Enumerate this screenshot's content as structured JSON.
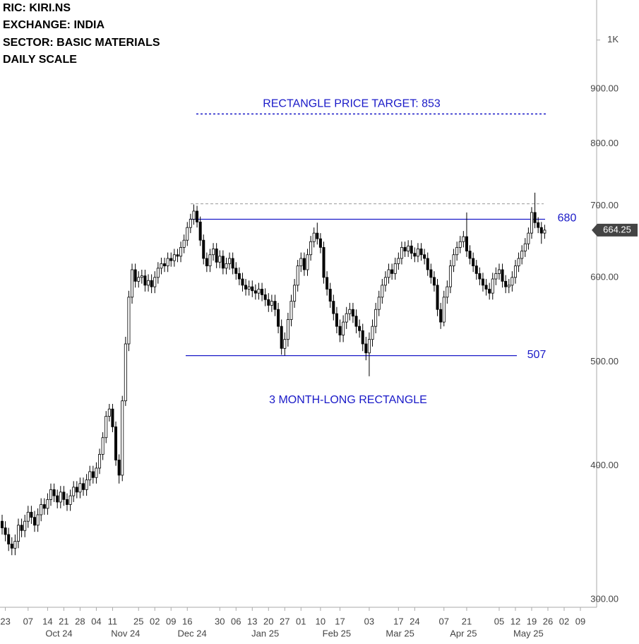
{
  "chart_data": {
    "type": "candlestick",
    "header_lines": [
      "RIC:  KIRI.NS",
      "EXCHANGE:  INDIA",
      "SECTOR:  BASIC MATERIALS",
      "DAILY SCALE"
    ],
    "log_scale": true,
    "ylim": [
      295,
      1090
    ],
    "yticks": [
      {
        "value": 300,
        "label": "300.00"
      },
      {
        "value": 400,
        "label": "400.00"
      },
      {
        "value": 500,
        "label": "500.00"
      },
      {
        "value": 600,
        "label": "600.00"
      },
      {
        "value": 700,
        "label": "700.00"
      },
      {
        "value": 800,
        "label": "800.00"
      },
      {
        "value": 900,
        "label": "900.00"
      },
      {
        "value": 1000,
        "label": "1K"
      }
    ],
    "xlim": [
      -0.65,
      183
    ],
    "xticks": [
      {
        "value": 1,
        "label": "23"
      },
      {
        "value": 8,
        "label": "07"
      },
      {
        "value": 14,
        "label": "14"
      },
      {
        "value": 19,
        "label": "21"
      },
      {
        "value": 24,
        "label": "28"
      },
      {
        "value": 29,
        "label": "04"
      },
      {
        "value": 34,
        "label": "11"
      },
      {
        "value": 42,
        "label": "25"
      },
      {
        "value": 47,
        "label": "02"
      },
      {
        "value": 52,
        "label": "09"
      },
      {
        "value": 57,
        "label": "16"
      },
      {
        "value": 67,
        "label": "30"
      },
      {
        "value": 72,
        "label": "06"
      },
      {
        "value": 77,
        "label": "13"
      },
      {
        "value": 82,
        "label": "20"
      },
      {
        "value": 87,
        "label": "27"
      },
      {
        "value": 92,
        "label": "01"
      },
      {
        "value": 98,
        "label": "10"
      },
      {
        "value": 104,
        "label": "17"
      },
      {
        "value": 113,
        "label": "03"
      },
      {
        "value": 122,
        "label": "17"
      },
      {
        "value": 127,
        "label": "24"
      },
      {
        "value": 136,
        "label": "07"
      },
      {
        "value": 143,
        "label": "21"
      },
      {
        "value": 153,
        "label": "05"
      },
      {
        "value": 158,
        "label": "12"
      },
      {
        "value": 163,
        "label": "19"
      },
      {
        "value": 168,
        "label": "26"
      },
      {
        "value": 173,
        "label": "02"
      },
      {
        "value": 178,
        "label": "09"
      }
    ],
    "month_labels": [
      {
        "value": 17.5,
        "label": "Oct 24"
      },
      {
        "value": 38,
        "label": "Nov 24"
      },
      {
        "value": 58.5,
        "label": "Dec 24"
      },
      {
        "value": 81,
        "label": "Jan 25"
      },
      {
        "value": 103,
        "label": "Feb 25"
      },
      {
        "value": 122.5,
        "label": "Mar 25"
      },
      {
        "value": 142,
        "label": "Apr 25"
      },
      {
        "value": 162,
        "label": "May 25"
      }
    ],
    "up_color": "#ffffff",
    "down_color": "#000000",
    "open": [
      355,
      350,
      345,
      338,
      335,
      340,
      352,
      348,
      355,
      362,
      358,
      352,
      360,
      368,
      365,
      372,
      380,
      375,
      370,
      378,
      372,
      368,
      375,
      382,
      378,
      385,
      380,
      388,
      395,
      390,
      398,
      410,
      425,
      445,
      452,
      435,
      405,
      392,
      460,
      520,
      575,
      610,
      595,
      600,
      602,
      590,
      596,
      588,
      600,
      612,
      618,
      615,
      625,
      622,
      630,
      628,
      640,
      650,
      668,
      680,
      692,
      676,
      650,
      625,
      615,
      630,
      638,
      620,
      628,
      612,
      618,
      625,
      612,
      605,
      598,
      590,
      585,
      588,
      583,
      580,
      585,
      578,
      572,
      565,
      570,
      560,
      540,
      515,
      525,
      548,
      570,
      590,
      615,
      625,
      610,
      630,
      648,
      660,
      652,
      640,
      600,
      585,
      570,
      555,
      540,
      530,
      545,
      555,
      560,
      552,
      540,
      535,
      520,
      510,
      525,
      540,
      560,
      575,
      590,
      600,
      610,
      605,
      618,
      625,
      640,
      635,
      642,
      632,
      628,
      638,
      630,
      625,
      610,
      600,
      590,
      560,
      545,
      575,
      588,
      615,
      630,
      640,
      648,
      655,
      635,
      625,
      615,
      605,
      598,
      590,
      585,
      580,
      598,
      605,
      610,
      595,
      588,
      590,
      600,
      615,
      625,
      635,
      645,
      660,
      690,
      675,
      668,
      660
    ],
    "high": [
      360,
      355,
      350,
      343,
      345,
      357,
      357,
      360,
      367,
      367,
      363,
      365,
      373,
      373,
      377,
      385,
      385,
      380,
      383,
      383,
      377,
      380,
      387,
      387,
      390,
      390,
      393,
      400,
      400,
      403,
      415,
      430,
      450,
      457,
      457,
      440,
      410,
      465,
      528,
      583,
      618,
      618,
      608,
      610,
      610,
      604,
      604,
      608,
      620,
      626,
      626,
      633,
      633,
      638,
      638,
      648,
      658,
      676,
      688,
      702,
      700,
      684,
      658,
      633,
      638,
      646,
      646,
      636,
      636,
      626,
      633,
      633,
      620,
      613,
      606,
      598,
      596,
      596,
      591,
      593,
      593,
      586,
      580,
      578,
      578,
      568,
      548,
      533,
      556,
      578,
      598,
      623,
      633,
      633,
      638,
      656,
      668,
      675,
      660,
      648,
      608,
      593,
      578,
      563,
      548,
      553,
      563,
      568,
      568,
      560,
      548,
      543,
      528,
      533,
      548,
      568,
      583,
      598,
      608,
      618,
      618,
      626,
      633,
      648,
      648,
      650,
      650,
      640,
      646,
      646,
      638,
      633,
      618,
      608,
      598,
      568,
      583,
      596,
      623,
      638,
      648,
      656,
      663,
      690,
      643,
      633,
      623,
      613,
      606,
      598,
      593,
      606,
      613,
      618,
      618,
      603,
      598,
      608,
      623,
      633,
      643,
      653,
      668,
      698,
      720,
      683,
      676,
      672
    ],
    "low": [
      345,
      340,
      333,
      330,
      330,
      335,
      343,
      343,
      350,
      353,
      347,
      347,
      355,
      360,
      360,
      367,
      370,
      365,
      365,
      367,
      363,
      363,
      370,
      373,
      373,
      375,
      375,
      383,
      385,
      385,
      393,
      405,
      420,
      440,
      430,
      400,
      385,
      387,
      455,
      512,
      567,
      587,
      587,
      592,
      582,
      582,
      580,
      580,
      592,
      604,
      607,
      607,
      614,
      614,
      620,
      620,
      632,
      642,
      660,
      672,
      668,
      642,
      617,
      607,
      607,
      622,
      612,
      612,
      604,
      604,
      610,
      604,
      597,
      590,
      582,
      577,
      577,
      575,
      572,
      572,
      570,
      564,
      557,
      557,
      552,
      532,
      508,
      507,
      517,
      540,
      562,
      582,
      607,
      602,
      602,
      622,
      640,
      644,
      632,
      592,
      577,
      562,
      547,
      532,
      522,
      522,
      537,
      547,
      544,
      532,
      527,
      512,
      502,
      485,
      517,
      532,
      552,
      567,
      582,
      592,
      597,
      597,
      610,
      617,
      627,
      627,
      624,
      620,
      620,
      622,
      617,
      602,
      592,
      582,
      552,
      537,
      540,
      567,
      580,
      607,
      622,
      632,
      640,
      627,
      617,
      607,
      597,
      590,
      582,
      577,
      572,
      572,
      590,
      597,
      587,
      580,
      580,
      582,
      592,
      607,
      617,
      627,
      637,
      652,
      667,
      660,
      645,
      652
    ],
    "close": [
      350,
      345,
      338,
      335,
      340,
      352,
      348,
      355,
      362,
      358,
      352,
      360,
      368,
      365,
      372,
      380,
      375,
      370,
      378,
      372,
      368,
      375,
      382,
      378,
      385,
      380,
      388,
      395,
      390,
      398,
      410,
      425,
      445,
      452,
      435,
      405,
      392,
      460,
      520,
      575,
      610,
      595,
      600,
      602,
      590,
      596,
      588,
      600,
      612,
      618,
      615,
      625,
      622,
      630,
      628,
      640,
      650,
      668,
      680,
      692,
      676,
      650,
      625,
      615,
      630,
      638,
      620,
      628,
      612,
      618,
      625,
      612,
      605,
      598,
      590,
      585,
      588,
      583,
      580,
      585,
      578,
      572,
      565,
      570,
      560,
      540,
      515,
      525,
      548,
      570,
      590,
      615,
      625,
      610,
      630,
      648,
      660,
      652,
      640,
      600,
      585,
      570,
      555,
      540,
      530,
      545,
      555,
      560,
      552,
      540,
      535,
      520,
      510,
      525,
      540,
      560,
      575,
      590,
      600,
      610,
      605,
      618,
      625,
      640,
      635,
      642,
      632,
      628,
      638,
      630,
      625,
      610,
      600,
      590,
      560,
      545,
      575,
      588,
      615,
      630,
      640,
      648,
      655,
      635,
      625,
      615,
      605,
      598,
      590,
      585,
      580,
      598,
      605,
      610,
      595,
      588,
      590,
      600,
      615,
      625,
      635,
      645,
      660,
      690,
      675,
      668,
      660,
      664.25
    ],
    "last_price": 664.25,
    "levels": [
      {
        "value": 680,
        "label": "680",
        "color": "#1a1ac8"
      },
      {
        "value": 507,
        "label": "507",
        "color": "#1a1ac8"
      }
    ],
    "resistance_top": {
      "value": 703,
      "color": "#999999"
    },
    "target": {
      "value": 853,
      "label": "RECTANGLE PRICE TARGET: 853",
      "color": "#1a1ac8"
    },
    "pattern_label": "3 MONTH-LONG RECTANGLE"
  }
}
